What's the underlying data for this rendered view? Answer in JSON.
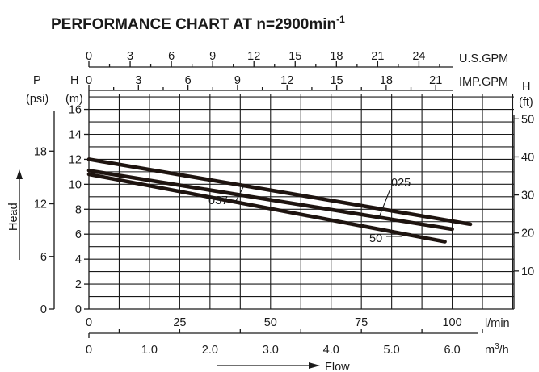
{
  "chart_data": {
    "type": "line",
    "title": "PERFORMANCE CHART AT n=2900min",
    "title_superscript": "-1",
    "colors": {
      "curve": "#1e1410",
      "grid": "#1a1a1a"
    },
    "x_axis_flow_lmin": {
      "label": "l/min",
      "range": [
        0,
        117
      ],
      "ticks": [
        "0",
        "25",
        "50",
        "75",
        "100"
      ],
      "tick_values": [
        0,
        25,
        50,
        75,
        100
      ]
    },
    "x_axis_flow_m3h": {
      "label": "m",
      "label_sup": "3",
      "label_tail": "/h",
      "ticks": [
        "0",
        "1.0",
        "2.0",
        "3.0",
        "4.0",
        "5.0",
        "6.0"
      ],
      "tick_values": [
        0,
        1,
        2,
        3,
        4,
        5,
        6
      ]
    },
    "x_axis_usgpm": {
      "label": "U.S.GPM",
      "ticks": [
        "0",
        "3",
        "6",
        "9",
        "12",
        "15",
        "18",
        "21",
        "24"
      ],
      "tick_values": [
        0,
        3,
        6,
        9,
        12,
        15,
        18,
        21,
        24
      ]
    },
    "x_axis_impgpm": {
      "label": "IMP.GPM",
      "ticks": [
        "0",
        "3",
        "6",
        "9",
        "12",
        "15",
        "18",
        "21"
      ],
      "tick_values": [
        0,
        3,
        6,
        9,
        12,
        15,
        18,
        21
      ]
    },
    "y_axis_head_m": {
      "unit_letter": "H",
      "unit": "(m)",
      "range": [
        0,
        17.2
      ],
      "ticks": [
        "0",
        "2",
        "4",
        "6",
        "8",
        "10",
        "12",
        "14",
        "16"
      ],
      "tick_values": [
        0,
        2,
        4,
        6,
        8,
        10,
        12,
        14,
        16
      ]
    },
    "y_axis_pressure_psi": {
      "unit_letter": "P",
      "unit": "(psi)",
      "ticks": [
        "0",
        "6",
        "12",
        "18"
      ],
      "tick_values": [
        0,
        6,
        12,
        18
      ]
    },
    "y_axis_head_ft": {
      "unit_letter": "H",
      "unit": "(ft)",
      "ticks": [
        "10",
        "20",
        "30",
        "40",
        "50"
      ],
      "tick_values": [
        10,
        20,
        30,
        40,
        50
      ]
    },
    "xlabel": "Flow",
    "ylabel": "Head",
    "grid": true,
    "series": [
      {
        "name": "037",
        "x": [
          0,
          105
        ],
        "y": [
          12.0,
          6.8
        ]
      },
      {
        "name": "025",
        "x": [
          0,
          100
        ],
        "y": [
          11.1,
          6.4
        ]
      },
      {
        "name": "50",
        "x": [
          0,
          98
        ],
        "y": [
          10.8,
          5.4
        ]
      }
    ]
  }
}
